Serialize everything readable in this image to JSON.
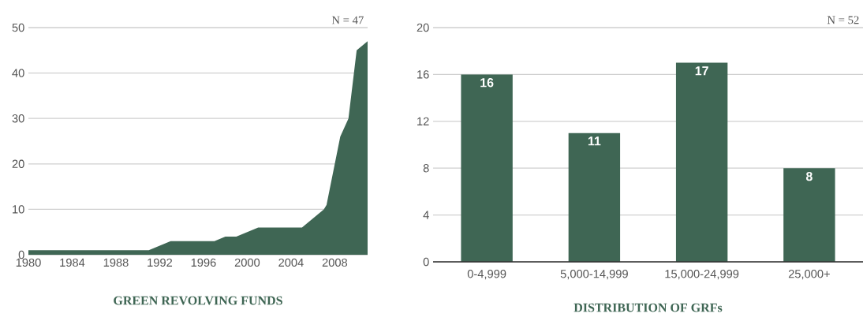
{
  "chart_data": [
    {
      "type": "area",
      "title": "GREEN REVOLVING FUNDS",
      "annotations": [
        "N = 47"
      ],
      "x": [
        1980,
        1991,
        1993,
        1997,
        1998,
        1999,
        2001,
        2005,
        2007,
        2007.25,
        2007.75,
        2008.5,
        2009.25,
        2010,
        2011
      ],
      "values": [
        1,
        1,
        3,
        3,
        4,
        4,
        6,
        6,
        10,
        11,
        17,
        26,
        30,
        45,
        47
      ],
      "color": "#3f6654",
      "xlim": [
        1980,
        2011
      ],
      "ylim": [
        0,
        50
      ],
      "xticks": [
        1980,
        1984,
        1988,
        1992,
        1996,
        2000,
        2004,
        2008
      ],
      "yticks": [
        0,
        10,
        20,
        30,
        40,
        50
      ],
      "grid": "y"
    },
    {
      "type": "bar",
      "title": "DISTRIBUTION OF GRFs",
      "annotations": [
        "N = 52"
      ],
      "categories": [
        "0-4,999",
        "5,000-14,999",
        "15,000-24,999",
        "25,000+"
      ],
      "values": [
        16,
        11,
        17,
        8
      ],
      "color": "#3f6654",
      "ylim": [
        0,
        20
      ],
      "yticks": [
        0,
        4,
        8,
        12,
        16,
        20
      ],
      "grid": "y",
      "data_labels": true
    }
  ]
}
